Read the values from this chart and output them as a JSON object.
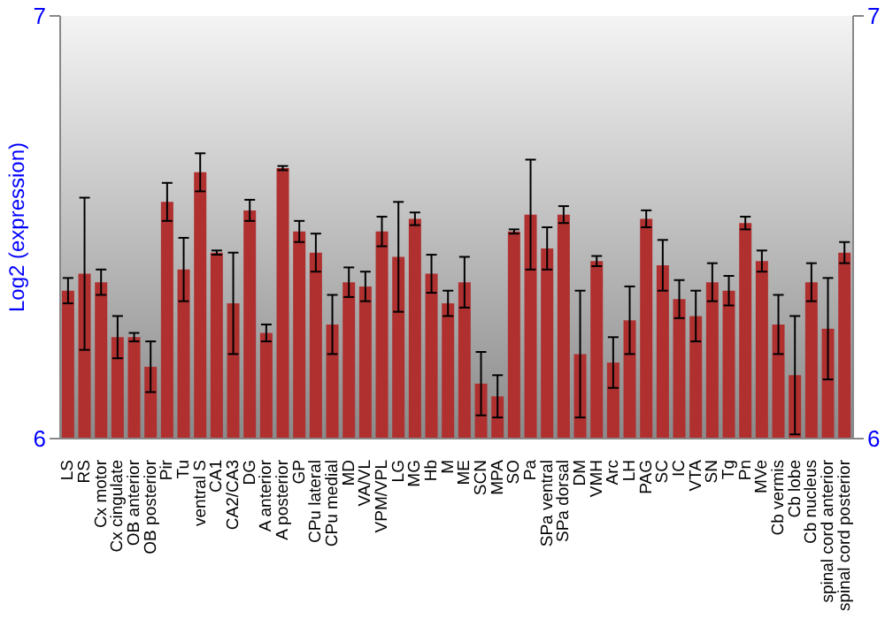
{
  "chart_data": {
    "type": "bar",
    "ylabel": "Log2 (expression)",
    "categories": [
      "LS",
      "RS",
      "Cx motor",
      "Cx cingulate",
      "OB anterior",
      "OB posterior",
      "Pir",
      "Tu",
      "ventral S",
      "CA1",
      "CA2/CA3",
      "DG",
      "A anterior",
      "A posterior",
      "GP",
      "CPu lateral",
      "CPu medial",
      "MD",
      "VA/VL",
      "VPM/VPL",
      "LG",
      "MG",
      "Hb",
      "M",
      "ME",
      "SCN",
      "MPA",
      "SO",
      "Pa",
      "SPa ventral",
      "SPa dorsal",
      "DM",
      "VMH",
      "Arc",
      "LH",
      "PAG",
      "SC",
      "IC",
      "VTA",
      "SN",
      "Tg",
      "Pn",
      "MVe",
      "Cb vermis",
      "Cb lobe",
      "Cb nucleus",
      "spinal cord anterior",
      "spinal cord posterior"
    ],
    "values": [
      6.35,
      6.39,
      6.37,
      6.24,
      6.24,
      6.17,
      6.56,
      6.4,
      6.63,
      6.44,
      6.32,
      6.54,
      6.25,
      6.64,
      6.49,
      6.44,
      6.27,
      6.37,
      6.36,
      6.49,
      6.43,
      6.52,
      6.39,
      6.32,
      6.37,
      6.13,
      6.1,
      6.49,
      6.53,
      6.45,
      6.53,
      6.2,
      6.42,
      6.18,
      6.28,
      6.52,
      6.41,
      6.33,
      6.29,
      6.37,
      6.35,
      6.51,
      6.42,
      6.27,
      6.15,
      6.37,
      6.26,
      6.44
    ],
    "errors": [
      0.03,
      0.18,
      0.03,
      0.05,
      0.01,
      0.06,
      0.045,
      0.075,
      0.045,
      0.005,
      0.12,
      0.025,
      0.02,
      0.005,
      0.025,
      0.045,
      0.07,
      0.035,
      0.035,
      0.035,
      0.13,
      0.015,
      0.045,
      0.03,
      0.06,
      0.075,
      0.05,
      0.005,
      0.13,
      0.05,
      0.02,
      0.15,
      0.012,
      0.06,
      0.08,
      0.02,
      0.06,
      0.045,
      0.06,
      0.045,
      0.035,
      0.015,
      0.025,
      0.07,
      0.14,
      0.045,
      0.12,
      0.025
    ],
    "color": "#b03030",
    "ylim": [
      6,
      7
    ],
    "yticks": [
      6,
      7
    ],
    "y2lim": [
      6,
      7
    ],
    "y2ticks": [
      6,
      7
    ]
  }
}
